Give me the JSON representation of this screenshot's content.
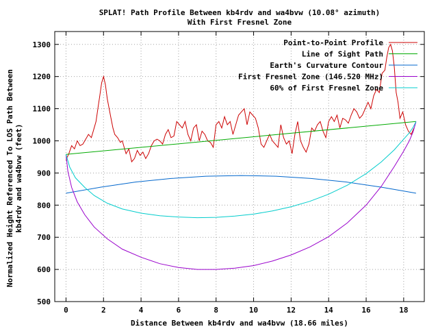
{
  "chart_data": {
    "type": "line",
    "title_lines": [
      "SPLAT! Path Profile Between kb4rdv and wa4bvw (10.08° azimuth)",
      "With First Fresnel Zone"
    ],
    "xlabel": "Distance Between kb4rdv and wa4bvw (18.66 miles)",
    "ylabel_lines": [
      "Normalized Height Referenced To LOS Path Between",
      "kb4rdv and wa4bvw (feet)"
    ],
    "xlim": [
      -0.6,
      19.1
    ],
    "ylim": [
      500,
      1340
    ],
    "xticks": [
      0,
      2,
      4,
      6,
      8,
      10,
      12,
      14,
      16,
      18
    ],
    "xtick_labels": [
      "0",
      "2",
      "4",
      "6",
      "8",
      "10",
      "12",
      "14",
      "16",
      "18"
    ],
    "yticks": [
      500,
      600,
      700,
      800,
      900,
      1000,
      1100,
      1200,
      1300
    ],
    "ytick_labels": [
      "500",
      "600",
      "700",
      "800",
      "900",
      "1000",
      "1100",
      "1200",
      "1300"
    ],
    "grid": true,
    "legend_position": "top-right",
    "series": [
      {
        "name": "Point-to-Point Profile",
        "color": "#cc0000",
        "x": [
          0,
          0.15,
          0.3,
          0.45,
          0.6,
          0.75,
          0.9,
          1.05,
          1.2,
          1.35,
          1.5,
          1.6,
          1.7,
          1.8,
          1.9,
          2.0,
          2.1,
          2.2,
          2.3,
          2.4,
          2.5,
          2.6,
          2.75,
          2.9,
          3.0,
          3.1,
          3.2,
          3.35,
          3.5,
          3.65,
          3.8,
          3.95,
          4.1,
          4.25,
          4.4,
          4.55,
          4.7,
          4.85,
          5.0,
          5.15,
          5.3,
          5.45,
          5.6,
          5.75,
          5.9,
          6.05,
          6.2,
          6.35,
          6.5,
          6.65,
          6.8,
          6.95,
          7.1,
          7.25,
          7.4,
          7.55,
          7.7,
          7.85,
          8.0,
          8.15,
          8.3,
          8.45,
          8.6,
          8.75,
          8.9,
          9.05,
          9.2,
          9.35,
          9.5,
          9.65,
          9.8,
          9.95,
          10.1,
          10.25,
          10.4,
          10.55,
          10.7,
          10.85,
          11.0,
          11.15,
          11.3,
          11.45,
          11.6,
          11.75,
          11.9,
          12.05,
          12.2,
          12.35,
          12.5,
          12.65,
          12.8,
          12.95,
          13.1,
          13.25,
          13.4,
          13.55,
          13.7,
          13.85,
          14.0,
          14.15,
          14.3,
          14.45,
          14.6,
          14.75,
          14.9,
          15.05,
          15.2,
          15.35,
          15.5,
          15.65,
          15.8,
          15.95,
          16.1,
          16.25,
          16.4,
          16.55,
          16.7,
          16.85,
          17.0,
          17.1,
          17.2,
          17.3,
          17.4,
          17.5,
          17.6,
          17.7,
          17.8,
          17.95,
          18.1,
          18.25,
          18.4,
          18.55
        ],
        "y": [
          940,
          960,
          985,
          975,
          1000,
          985,
          990,
          1005,
          1020,
          1010,
          1040,
          1060,
          1100,
          1140,
          1180,
          1200,
          1175,
          1130,
          1100,
          1070,
          1040,
          1020,
          1010,
          995,
          1000,
          980,
          960,
          975,
          935,
          945,
          970,
          955,
          965,
          945,
          960,
          985,
          1000,
          1005,
          1000,
          990,
          1020,
          1035,
          1010,
          1015,
          1060,
          1050,
          1040,
          1060,
          1020,
          1000,
          1040,
          1050,
          1000,
          1030,
          1020,
          1000,
          995,
          980,
          1050,
          1060,
          1040,
          1075,
          1050,
          1060,
          1020,
          1050,
          1080,
          1090,
          1100,
          1050,
          1090,
          1080,
          1070,
          1040,
          990,
          980,
          1000,
          1020,
          1000,
          990,
          980,
          1050,
          1010,
          990,
          1000,
          960,
          1020,
          1060,
          1000,
          980,
          965,
          990,
          1040,
          1030,
          1050,
          1060,
          1030,
          1010,
          1060,
          1075,
          1060,
          1080,
          1040,
          1070,
          1065,
          1055,
          1080,
          1100,
          1090,
          1070,
          1080,
          1100,
          1120,
          1100,
          1140,
          1160,
          1150,
          1210,
          1220,
          1260,
          1290,
          1300,
          1280,
          1230,
          1150,
          1120,
          1070,
          1090,
          1050,
          1030,
          1020,
          1040
        ]
      },
      {
        "name": "Line of Sight Path",
        "color": "#00aa00",
        "x": [
          0,
          18.66
        ],
        "y": [
          958,
          1060
        ]
      },
      {
        "name": "Earth's Curvature Contour",
        "color": "#0066cc",
        "x": [
          0,
          1.87,
          3.73,
          5.6,
          7.46,
          9.33,
          11.2,
          13.06,
          14.93,
          16.79,
          18.66
        ],
        "y": [
          837,
          856,
          872,
          883,
          890,
          892,
          890,
          883,
          872,
          856,
          837
        ]
      },
      {
        "name": "First Fresnel Zone (146.520 MHz)",
        "color": "#9900cc",
        "x": [
          0,
          0.1,
          0.3,
          0.6,
          1.0,
          1.5,
          2.2,
          3.0,
          4.0,
          5.0,
          6.0,
          7.0,
          8.0,
          9.0,
          10.0,
          11.0,
          12.0,
          13.0,
          14.0,
          15.0,
          16.0,
          16.8,
          17.5,
          18.0,
          18.3,
          18.5,
          18.66
        ],
        "y": [
          958,
          905,
          855,
          810,
          770,
          732,
          695,
          663,
          638,
          618,
          606,
          600,
          600,
          604,
          612,
          626,
          645,
          670,
          702,
          745,
          800,
          858,
          920,
          968,
          1000,
          1028,
          1060
        ]
      },
      {
        "name": "60% of First Fresnel Zone",
        "color": "#00cccc",
        "x": [
          0,
          0.2,
          0.5,
          1.0,
          1.5,
          2.2,
          3.0,
          4.0,
          5.0,
          6.0,
          7.0,
          8.0,
          9.0,
          10.0,
          11.0,
          12.0,
          13.0,
          14.0,
          15.0,
          16.0,
          16.8,
          17.5,
          18.0,
          18.3,
          18.5,
          18.66
        ],
        "y": [
          958,
          918,
          885,
          855,
          830,
          806,
          788,
          775,
          767,
          763,
          761,
          762,
          766,
          772,
          782,
          795,
          812,
          834,
          862,
          898,
          934,
          972,
          1005,
          1025,
          1042,
          1060
        ]
      }
    ]
  }
}
